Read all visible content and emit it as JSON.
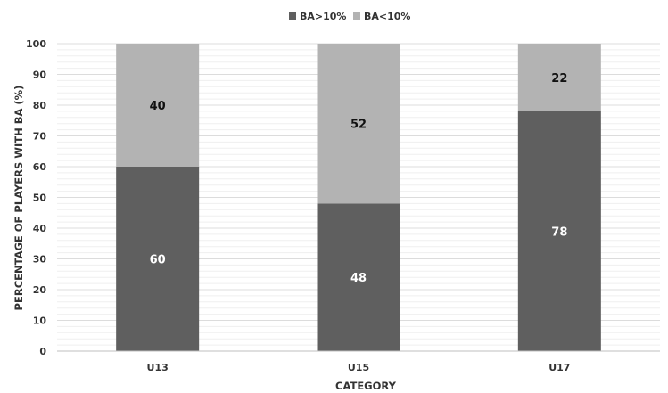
{
  "chart_data": {
    "type": "bar",
    "stacked": true,
    "categories": [
      "U13",
      "U15",
      "U17"
    ],
    "series": [
      {
        "name": "BA>10%",
        "values": [
          60,
          48,
          78
        ],
        "color": "#5f5f5f",
        "label_color": "#ffffff"
      },
      {
        "name": "BA<10%",
        "values": [
          40,
          52,
          22
        ],
        "color": "#b3b3b3",
        "label_color": "#111111"
      }
    ],
    "xlabel": "CATEGORY",
    "ylabel": "PERCENTAGE OF PLAYERS WITH BA (%)",
    "ylim": [
      0,
      100
    ],
    "yticks": [
      0,
      10,
      20,
      30,
      40,
      50,
      60,
      70,
      80,
      90,
      100
    ],
    "grid": true,
    "grid_color": "#dcdcdc",
    "legend_position": "top-center"
  }
}
